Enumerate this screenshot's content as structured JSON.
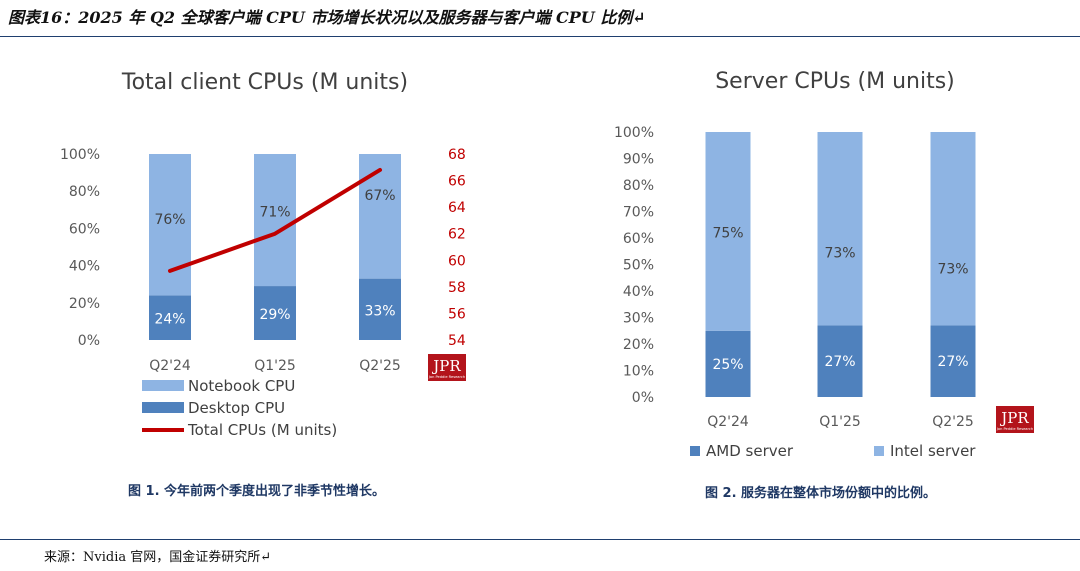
{
  "page": {
    "title": "图表16：2025 年 Q2 全球客户端 CPU 市场增长状况以及服务器与客户端 CPU 比例↵",
    "source": "来源：Nvidia 官网，国金证券研究所↵"
  },
  "colors": {
    "notebook": "#8eb4e3",
    "desktop": "#4f81bd",
    "line": "#c00000",
    "amd": "#4f81bd",
    "intel": "#8eb4e3",
    "axis_text": "#595959",
    "right_axis_text": "#c00000"
  },
  "logo": {
    "text": "JPR",
    "subtext": "Jon Peddie Research"
  },
  "chart_data": [
    {
      "type": "bar",
      "stacked": true,
      "title": "Total client CPUs (M units)",
      "categories": [
        "Q2'24",
        "Q1'25",
        "Q2'25"
      ],
      "series": [
        {
          "name": "Desktop CPU",
          "values": [
            24,
            29,
            33
          ],
          "labels": [
            "24%",
            "29%",
            "33%"
          ]
        },
        {
          "name": "Notebook CPU",
          "values": [
            76,
            71,
            67
          ],
          "labels": [
            "76%",
            "71%",
            "67%"
          ]
        }
      ],
      "line_series": {
        "name": "Total CPUs (M units)",
        "values": [
          59.2,
          62.0,
          66.8
        ],
        "axis": "right"
      },
      "ylim": [
        0,
        100
      ],
      "yticks": [
        "0%",
        "20%",
        "40%",
        "60%",
        "80%",
        "100%"
      ],
      "y2lim": [
        54,
        68
      ],
      "y2ticks": [
        "54",
        "56",
        "58",
        "60",
        "62",
        "64",
        "66",
        "68"
      ],
      "legend": [
        "Notebook CPU",
        "Desktop CPU",
        "Total CPUs (M units)"
      ],
      "legend_position": "bottom-left",
      "caption": "图 1. 今年前两个季度出现了非季节性增长。",
      "grid": false
    },
    {
      "type": "bar",
      "stacked": true,
      "title": "Server CPUs (M units)",
      "categories": [
        "Q2'24",
        "Q1'25",
        "Q2'25"
      ],
      "series": [
        {
          "name": "AMD server",
          "values": [
            25,
            27,
            27
          ],
          "labels": [
            "25%",
            "27%",
            "27%"
          ]
        },
        {
          "name": "Intel server",
          "values": [
            75,
            73,
            73
          ],
          "labels": [
            "75%",
            "73%",
            "73%"
          ]
        }
      ],
      "ylim": [
        0,
        100
      ],
      "yticks": [
        "0%",
        "10%",
        "20%",
        "30%",
        "40%",
        "50%",
        "60%",
        "70%",
        "80%",
        "90%",
        "100%"
      ],
      "legend": [
        "AMD server",
        "Intel server"
      ],
      "legend_position": "bottom",
      "caption": "图 2. 服务器在整体市场份额中的比例。",
      "grid": false
    }
  ]
}
